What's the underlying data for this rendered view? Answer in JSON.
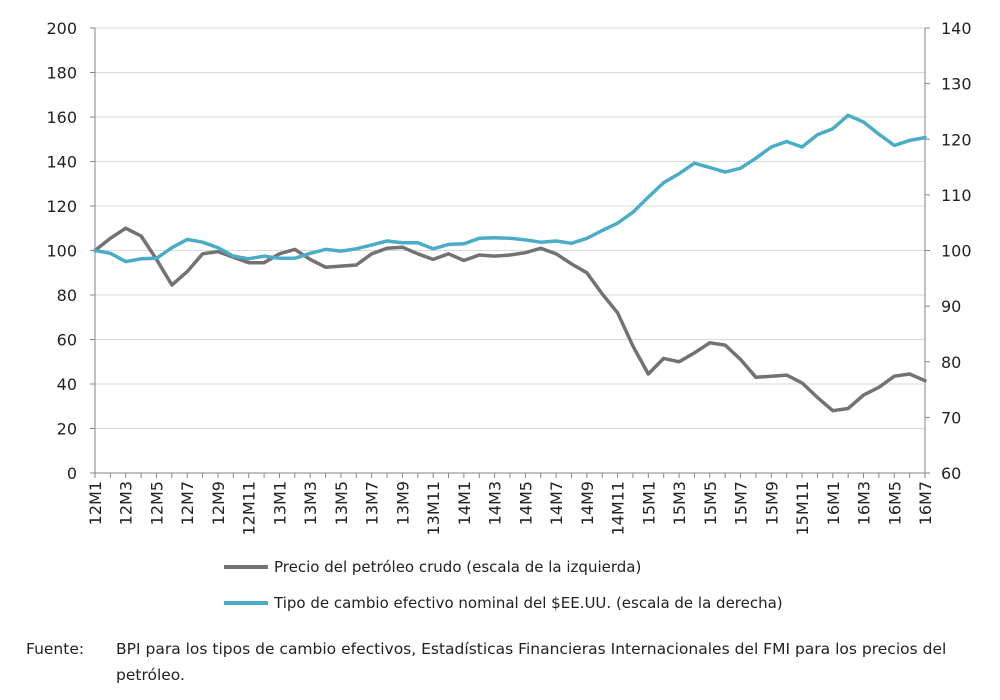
{
  "chart_data": {
    "type": "line",
    "categories": [
      "12M1",
      "12M2",
      "12M3",
      "12M4",
      "12M5",
      "12M6",
      "12M7",
      "12M8",
      "12M9",
      "12M10",
      "12M11",
      "12M12",
      "13M1",
      "13M2",
      "13M3",
      "13M4",
      "13M5",
      "13M6",
      "13M7",
      "13M8",
      "13M9",
      "13M10",
      "13M11",
      "13M12",
      "14M1",
      "14M2",
      "14M3",
      "14M4",
      "14M5",
      "14M6",
      "14M7",
      "14M8",
      "14M9",
      "14M10",
      "14M11",
      "14M12",
      "15M1",
      "15M2",
      "15M3",
      "15M4",
      "15M5",
      "15M6",
      "15M7",
      "15M8",
      "15M9",
      "15M10",
      "15M11",
      "15M12",
      "16M1",
      "16M2",
      "16M3",
      "16M4",
      "16M5",
      "16M6",
      "16M7"
    ],
    "x_tick_labels": [
      "12M1",
      "12M3",
      "12M5",
      "12M7",
      "12M9",
      "12M11",
      "13M1",
      "13M3",
      "13M5",
      "13M7",
      "13M9",
      "13M11",
      "14M1",
      "14M3",
      "14M5",
      "14M7",
      "14M9",
      "14M11",
      "15M1",
      "15M3",
      "15M5",
      "15M7",
      "15M9",
      "15M11",
      "16M1",
      "16M3",
      "16M5",
      "16M7"
    ],
    "y_left": {
      "ylim": [
        0,
        200
      ],
      "ticks": [
        0,
        20,
        40,
        60,
        80,
        100,
        120,
        140,
        160,
        180,
        200
      ]
    },
    "y_right": {
      "ylim": [
        60,
        140
      ],
      "ticks": [
        60,
        70,
        80,
        90,
        100,
        110,
        120,
        130,
        140
      ]
    },
    "grid": "horizontal",
    "legend_position": "bottom",
    "series": [
      {
        "name": "Precio del petróleo crudo (escala de la izquierda)",
        "axis": "left",
        "color": "#767171",
        "values": [
          100,
          105.5,
          110,
          106.5,
          96,
          84.5,
          90.5,
          98.5,
          99.5,
          97,
          94.5,
          94.5,
          98.5,
          100.5,
          96,
          92.5,
          93,
          93.5,
          98.5,
          101,
          101.5,
          98.5,
          96,
          98.5,
          95.5,
          98,
          97.5,
          98,
          99,
          101,
          98.5,
          94,
          90,
          80.5,
          72,
          57,
          44.5,
          51.5,
          50,
          54,
          58.5,
          57.5,
          51,
          43,
          43.5,
          44,
          40.5,
          34,
          28,
          29,
          35,
          38.5,
          43.5,
          44.5,
          41.5
        ]
      },
      {
        "name": "Tipo de cambio efectivo nominal del $EE.UU. (escala de la derecha)",
        "axis": "right",
        "color": "#4bacc6",
        "values": [
          100,
          99.5,
          98,
          98.5,
          98.6,
          100.5,
          102,
          101.5,
          100.5,
          99,
          98.5,
          99,
          98.6,
          98.6,
          99.5,
          100.2,
          99.9,
          100.3,
          101,
          101.7,
          101.4,
          101.4,
          100.3,
          101.1,
          101.2,
          102.2,
          102.3,
          102.2,
          101.9,
          101.5,
          101.7,
          101.3,
          102.2,
          103.6,
          104.9,
          106.9,
          109.6,
          112.2,
          113.8,
          115.7,
          114.9,
          114.1,
          114.8,
          116.6,
          118.6,
          119.6,
          118.6,
          120.8,
          121.9,
          124.3,
          123.1,
          120.9,
          118.9,
          119.8,
          120.3
        ]
      }
    ]
  },
  "legend": {
    "oil_label": "Precio del petróleo crudo (escala de la izquierda)",
    "fx_label": "Tipo de cambio efectivo nominal del $EE.UU. (escala de la derecha)"
  },
  "footnote": {
    "label": "Fuente:",
    "text": "BPI para los tipos de cambio efectivos, Estadísticas Financieras Internacionales del FMI para los precios del petróleo."
  }
}
